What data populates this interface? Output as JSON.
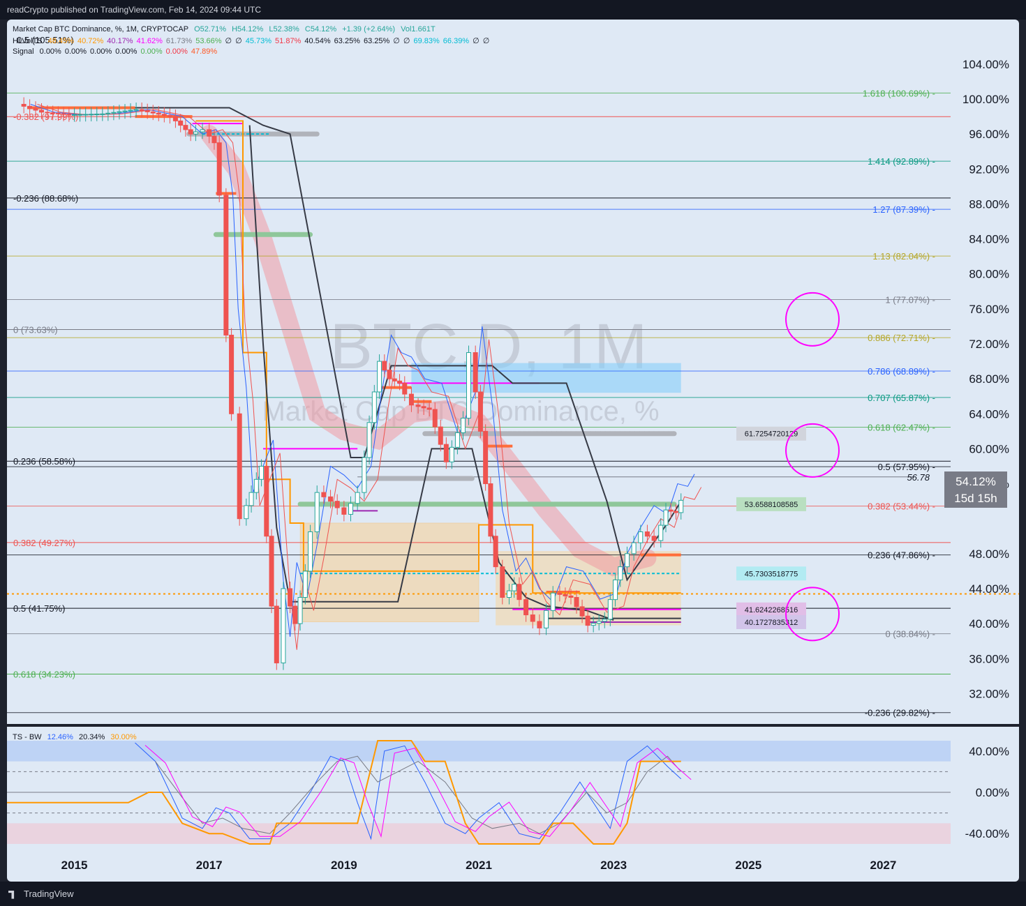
{
  "header": {
    "published": "readCrypto published on TradingView.com, Feb 14, 2024 09:44 UTC"
  },
  "footer": {
    "brand": "TradingView"
  },
  "legend": {
    "symbol": "Market Cap BTC Dominance, %, 1M, CRYPTOCAP",
    "open": "O52.71%",
    "high": "H54.12%",
    "low": "L52.38%",
    "close": "C54.12%",
    "change": "+1.39 (+2.64%)",
    "vol": "Vol1.661T",
    "hlvol_name": "HLVolTS",
    "hlvol_values": [
      "48.45%",
      "40.72%",
      "40.17%",
      "41.62%",
      "61.73%",
      "53.66%",
      "∅",
      "∅",
      "45.73%",
      "51.87%",
      "40.54%",
      "63.25%",
      "63.25%",
      "∅",
      "∅",
      "69.83%",
      "66.39%",
      "∅",
      "∅"
    ],
    "signal_name": "Signal",
    "signal_values": [
      "0.00%",
      "0.00%",
      "0.00%",
      "0.00%",
      "0.00%",
      "0.00%",
      "47.89%"
    ],
    "ts_name": "TS - BW",
    "ts_values": [
      "12.46%",
      "20.34%",
      "30.00%"
    ]
  },
  "watermark": {
    "ticker": "BTC.D, 1M",
    "name": "Market Cap BTC Dominance, %"
  },
  "colors": {
    "background": "#dfe9f5",
    "up": "#26a69a",
    "down": "#ef5350",
    "orange": "#ff9800",
    "magenta": "#ff00ff",
    "dark": "#363a45",
    "blue": "#2962ff",
    "green": "#4caf50",
    "red": "#f23645",
    "olive": "#b5a626",
    "gray": "#787b86",
    "cyan": "#00bcd4",
    "violet": "#9c27b0",
    "lightblue": "#87cefa",
    "pink": "#f48fb1"
  },
  "price_tag": {
    "value": "54.12%",
    "countdown": "15d 15h"
  },
  "chart_data": [
    {
      "type": "candlestick",
      "title": "Market Cap BTC Dominance, %, 1M, CRYPTOCAP",
      "x_axis": {
        "range": [
          2014.0,
          2028.0
        ],
        "ticks": [
          "2015",
          "2017",
          "2019",
          "2021",
          "2023",
          "2025",
          "2027"
        ]
      },
      "y_axis": {
        "range": [
          29.0,
          107.5
        ],
        "unit": "%",
        "ticks": [
          "104.00%",
          "100.00%",
          "96.00%",
          "92.00%",
          "88.00%",
          "84.00%",
          "80.00%",
          "76.00%",
          "72.00%",
          "68.00%",
          "64.00%",
          "60.00%",
          "56.00%",
          "48.00%",
          "44.00%",
          "40.00%",
          "36.00%",
          "32.00%"
        ]
      },
      "price_series": [
        {
          "t": 2014.25,
          "v": 99.4
        },
        {
          "t": 2014.6,
          "v": 98.5
        },
        {
          "t": 2015.0,
          "v": 98.2
        },
        {
          "t": 2015.5,
          "v": 98.3
        },
        {
          "t": 2016.0,
          "v": 98.8
        },
        {
          "t": 2016.5,
          "v": 98.0
        },
        {
          "t": 2016.8,
          "v": 96.0
        },
        {
          "t": 2017.0,
          "v": 96.5
        },
        {
          "t": 2017.15,
          "v": 95.0
        },
        {
          "t": 2017.25,
          "v": 89.0
        },
        {
          "t": 2017.33,
          "v": 73.0
        },
        {
          "t": 2017.45,
          "v": 64.0
        },
        {
          "t": 2017.55,
          "v": 52.0
        },
        {
          "t": 2017.7,
          "v": 55.0
        },
        {
          "t": 2017.85,
          "v": 58.0
        },
        {
          "t": 2018.0,
          "v": 42.0
        },
        {
          "t": 2018.1,
          "v": 35.5
        },
        {
          "t": 2018.2,
          "v": 44.0
        },
        {
          "t": 2018.35,
          "v": 40.0
        },
        {
          "t": 2018.5,
          "v": 46.0
        },
        {
          "t": 2018.7,
          "v": 55.0
        },
        {
          "t": 2018.9,
          "v": 54.0
        },
        {
          "t": 2019.1,
          "v": 52.5
        },
        {
          "t": 2019.3,
          "v": 55.0
        },
        {
          "t": 2019.45,
          "v": 63.0
        },
        {
          "t": 2019.6,
          "v": 70.0
        },
        {
          "t": 2019.75,
          "v": 68.0
        },
        {
          "t": 2019.9,
          "v": 67.5
        },
        {
          "t": 2020.1,
          "v": 65.0
        },
        {
          "t": 2020.35,
          "v": 64.5
        },
        {
          "t": 2020.6,
          "v": 58.5
        },
        {
          "t": 2020.85,
          "v": 63.5
        },
        {
          "t": 2020.95,
          "v": 71.0
        },
        {
          "t": 2021.1,
          "v": 62.0
        },
        {
          "t": 2021.25,
          "v": 50.0
        },
        {
          "t": 2021.45,
          "v": 43.0
        },
        {
          "t": 2021.6,
          "v": 44.5
        },
        {
          "t": 2021.8,
          "v": 41.0
        },
        {
          "t": 2022.0,
          "v": 39.5
        },
        {
          "t": 2022.2,
          "v": 43.5
        },
        {
          "t": 2022.45,
          "v": 43.0
        },
        {
          "t": 2022.7,
          "v": 39.8
        },
        {
          "t": 2022.95,
          "v": 40.5
        },
        {
          "t": 2023.1,
          "v": 45.0
        },
        {
          "t": 2023.3,
          "v": 48.0
        },
        {
          "t": 2023.5,
          "v": 50.5
        },
        {
          "t": 2023.7,
          "v": 49.5
        },
        {
          "t": 2023.85,
          "v": 53.0
        },
        {
          "t": 2024.0,
          "v": 52.7
        },
        {
          "t": 2024.1,
          "v": 54.1
        }
      ],
      "fib_levels_left": [
        {
          "label": "-0.382 (97.99%)",
          "value": 97.99
        },
        {
          "label": "-0.236 (88.68%)",
          "value": 88.68
        },
        {
          "label": "0 (73.63%)",
          "value": 73.63
        },
        {
          "label": "0.236 (58.58%)",
          "value": 58.58
        },
        {
          "label": "0.382 (49.27%)",
          "value": 49.27
        },
        {
          "label": "0.5 (41.75%)",
          "value": 41.75
        },
        {
          "label": "0.618 (34.23%)",
          "value": 34.23
        }
      ],
      "fib_levels_right": [
        {
          "label": "1.618 (100.69%)",
          "value": 100.69
        },
        {
          "label": "1.414 (92.89%)",
          "value": 92.89
        },
        {
          "label": "1.27 (87.39%)",
          "value": 87.39
        },
        {
          "label": "1.13 (82.04%)",
          "value": 82.04
        },
        {
          "label": "1 (77.07%)",
          "value": 77.07
        },
        {
          "label": "0.886 (72.71%)",
          "value": 72.71
        },
        {
          "label": "0.786 (68.89%)",
          "value": 68.89
        },
        {
          "label": "0.707 (65.87%)",
          "value": 65.87
        },
        {
          "label": "0.618 (62.47%)",
          "value": 62.47
        },
        {
          "label": "0.5 (57.95%)",
          "value": 57.95
        },
        {
          "label": "0.382 (53.44%)",
          "value": 53.44
        },
        {
          "label": "0.236 (47.86%)",
          "value": 47.86
        },
        {
          "label": "0 (38.84%)",
          "value": 38.84
        },
        {
          "label": "-0.236 (29.82%)",
          "value": 29.82
        }
      ],
      "top_left_partial_label": "0.5 (105.51%)",
      "level_callouts": [
        {
          "label": "61.7254720129",
          "value": 61.73
        },
        {
          "label": "53.6588108585",
          "value": 53.66
        },
        {
          "label": "45.7303518775",
          "value": 45.73
        },
        {
          "label": "41.6242268516",
          "value": 41.62
        },
        {
          "label": "40.1727835312",
          "value": 40.17
        }
      ],
      "dashed_level_label": "56.78",
      "highlight_circles": [
        {
          "t": 2025.95,
          "v": 74.8
        },
        {
          "t": 2025.95,
          "v": 59.8
        },
        {
          "t": 2025.95,
          "v": 41.1
        }
      ]
    },
    {
      "type": "line",
      "title": "TS - BW",
      "y_axis": {
        "range": [
          -50,
          50
        ],
        "ticks": [
          "40.00%",
          "0.00%",
          "-40.00%"
        ]
      },
      "series": [
        {
          "name": "12.46%",
          "points": [
            [
              2015.9,
              48
            ],
            [
              2016.2,
              30
            ],
            [
              2016.6,
              -25
            ],
            [
              2016.9,
              -35
            ],
            [
              2017.1,
              -15
            ],
            [
              2017.3,
              -20
            ],
            [
              2017.6,
              -45
            ],
            [
              2017.9,
              -45
            ],
            [
              2018.2,
              -30
            ],
            [
              2018.5,
              0
            ],
            [
              2018.8,
              35
            ],
            [
              2019.0,
              30
            ],
            [
              2019.2,
              -10
            ],
            [
              2019.4,
              -45
            ],
            [
              2019.6,
              40
            ],
            [
              2019.9,
              45
            ],
            [
              2020.2,
              10
            ],
            [
              2020.5,
              -30
            ],
            [
              2020.8,
              -40
            ],
            [
              2021.0,
              -25
            ],
            [
              2021.3,
              -10
            ],
            [
              2021.6,
              -40
            ],
            [
              2021.9,
              -45
            ],
            [
              2022.2,
              -20
            ],
            [
              2022.5,
              10
            ],
            [
              2022.8,
              -20
            ],
            [
              2022.95,
              -35
            ],
            [
              2023.2,
              30
            ],
            [
              2023.5,
              45
            ],
            [
              2023.8,
              25
            ],
            [
              2024.0,
              13
            ]
          ]
        },
        {
          "name": "20.34%",
          "points": [
            [
              2016.2,
              30
            ],
            [
              2016.6,
              -5
            ],
            [
              2016.9,
              -30
            ],
            [
              2017.2,
              -25
            ],
            [
              2017.5,
              -35
            ],
            [
              2017.9,
              -40
            ],
            [
              2018.2,
              -20
            ],
            [
              2018.6,
              10
            ],
            [
              2018.9,
              30
            ],
            [
              2019.2,
              35
            ],
            [
              2019.5,
              10
            ],
            [
              2019.8,
              20
            ],
            [
              2020.1,
              30
            ],
            [
              2020.5,
              10
            ],
            [
              2020.9,
              -25
            ],
            [
              2021.2,
              -35
            ],
            [
              2021.6,
              -30
            ],
            [
              2021.9,
              -40
            ],
            [
              2022.2,
              -30
            ],
            [
              2022.6,
              0
            ],
            [
              2022.9,
              -20
            ],
            [
              2023.2,
              -10
            ],
            [
              2023.5,
              20
            ],
            [
              2023.8,
              35
            ],
            [
              2024.0,
              20
            ]
          ]
        },
        {
          "name": "30.00%",
          "points": [
            [
              2014.0,
              -10
            ],
            [
              2015.8,
              -10
            ],
            [
              2016.1,
              0
            ],
            [
              2016.3,
              0
            ],
            [
              2016.6,
              -30
            ],
            [
              2017.0,
              -40
            ],
            [
              2017.2,
              -40
            ],
            [
              2017.6,
              -50
            ],
            [
              2017.9,
              -50
            ],
            [
              2018.0,
              -30
            ],
            [
              2018.5,
              -30
            ],
            [
              2018.9,
              -30
            ],
            [
              2019.2,
              -30
            ],
            [
              2019.5,
              50
            ],
            [
              2019.8,
              50
            ],
            [
              2020.0,
              50
            ],
            [
              2020.2,
              30
            ],
            [
              2020.5,
              30
            ],
            [
              2020.8,
              -30
            ],
            [
              2021.0,
              -50
            ],
            [
              2021.3,
              -50
            ],
            [
              2021.6,
              -50
            ],
            [
              2021.9,
              -50
            ],
            [
              2022.1,
              -30
            ],
            [
              2022.4,
              -30
            ],
            [
              2022.7,
              -50
            ],
            [
              2023.0,
              -50
            ],
            [
              2023.2,
              -30
            ],
            [
              2023.4,
              30
            ],
            [
              2024.0,
              30
            ]
          ]
        }
      ]
    }
  ]
}
